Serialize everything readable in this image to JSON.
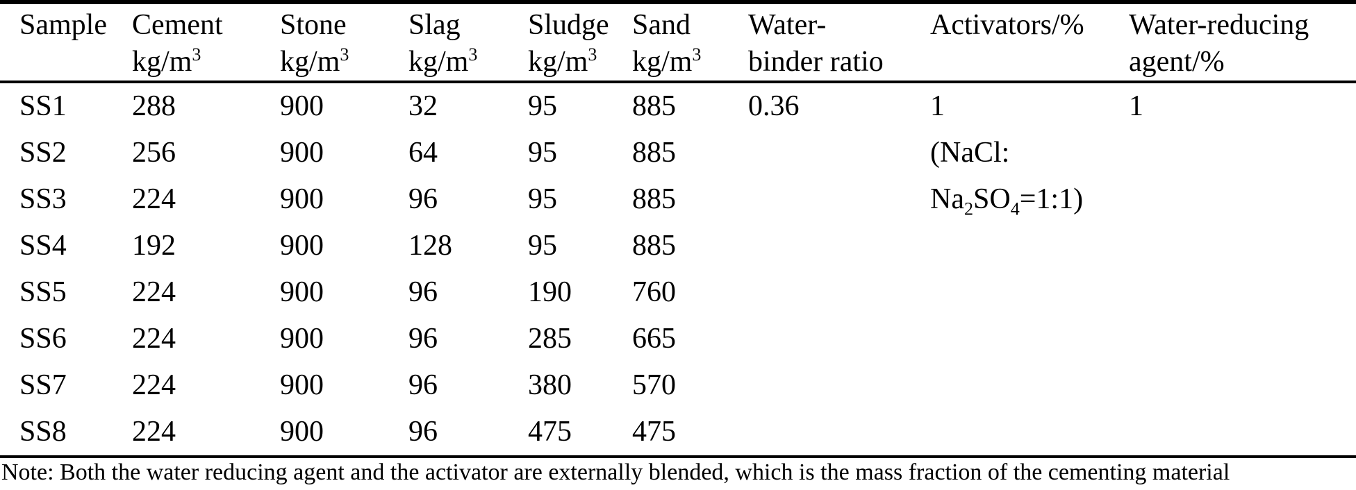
{
  "table": {
    "title_semantic": "concrete-mix-proportions",
    "columns": [
      {
        "line1": "Sample",
        "line2": ""
      },
      {
        "line1": "Cement",
        "line2": "kg/m³"
      },
      {
        "line1": "Stone",
        "line2": "kg/m³"
      },
      {
        "line1": "Slag",
        "line2": "kg/m³"
      },
      {
        "line1": "Sludge",
        "line2": "kg/m³"
      },
      {
        "line1": "Sand",
        "line2": "kg/m³"
      },
      {
        "line1": "Water-",
        "line2": "binder ratio"
      },
      {
        "line1": "Activators/%",
        "line2": ""
      },
      {
        "line1": "Water-reducing",
        "line2": "agent/%"
      }
    ],
    "rows": [
      [
        "SS1",
        "288",
        "900",
        "32",
        "95",
        "885",
        "0.36",
        "1",
        "1"
      ],
      [
        "SS2",
        "256",
        "900",
        "64",
        "95",
        "885",
        "",
        "(NaCl:",
        ""
      ],
      [
        "SS3",
        "224",
        "900",
        "96",
        "95",
        "885",
        "",
        "Na₂SO₄=1:1)",
        ""
      ],
      [
        "SS4",
        "192",
        "900",
        "128",
        "95",
        "885",
        "",
        "",
        ""
      ],
      [
        "SS5",
        "224",
        "900",
        "96",
        "190",
        "760",
        "",
        "",
        ""
      ],
      [
        "SS6",
        "224",
        "900",
        "96",
        "285",
        "665",
        "",
        "",
        ""
      ],
      [
        "SS7",
        "224",
        "900",
        "96",
        "380",
        "570",
        "",
        "",
        ""
      ],
      [
        "SS8",
        "224",
        "900",
        "96",
        "475",
        "475",
        "",
        "",
        ""
      ]
    ]
  },
  "note": "Note: Both the water reducing agent and the activator are externally blended, which is the mass fraction of the cementing material",
  "colors": {
    "text": "#000000",
    "background": "#ffffff",
    "rule": "#000000"
  }
}
